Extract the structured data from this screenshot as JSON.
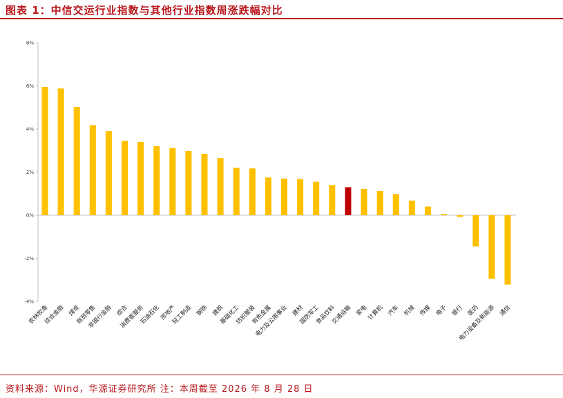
{
  "header": {
    "title": "图表 1：中信交运行业指数与其他行业指数周涨跌幅对比"
  },
  "footer": {
    "source": "资料来源：Wind，华源证券研究所  注：本周截至 2026 年 8 月 28 日"
  },
  "colors": {
    "bar": "#FFC000",
    "highlight": "#C00000",
    "axis": "#BFBFBF",
    "accent": "#B8161B"
  },
  "chart_data": {
    "type": "bar",
    "title": "",
    "xlabel": "",
    "ylabel": "",
    "ylim": [
      -4,
      8
    ],
    "yticks": [
      8,
      6,
      4,
      2,
      0,
      -2,
      -4
    ],
    "ytick_labels": [
      "8%",
      "6%",
      "4%",
      "2%",
      "0%",
      "-2%",
      "-4%"
    ],
    "grid": false,
    "legend": "none",
    "highlight_category": "交通运输",
    "categories": [
      "农林牧渔",
      "综合金融",
      "煤炭",
      "商贸零售",
      "非银行金融",
      "综合",
      "消费者服务",
      "石油石化",
      "房地产",
      "轻工制造",
      "钢铁",
      "建筑",
      "基础化工",
      "纺织服装",
      "有色金属",
      "电力及公用事业",
      "建材",
      "国防军工",
      "食品饮料",
      "交通运输",
      "家电",
      "计算机",
      "汽车",
      "机械",
      "传媒",
      "电子",
      "银行",
      "医药",
      "电力设备及新能源",
      "通信"
    ],
    "values": [
      5.95,
      5.88,
      5.02,
      4.18,
      3.9,
      3.45,
      3.4,
      3.2,
      3.12,
      2.98,
      2.85,
      2.65,
      2.2,
      2.17,
      1.75,
      1.7,
      1.68,
      1.55,
      1.4,
      1.3,
      1.22,
      1.12,
      0.98,
      0.68,
      0.4,
      0.06,
      -0.08,
      -1.45,
      -2.95,
      -3.22
    ]
  }
}
